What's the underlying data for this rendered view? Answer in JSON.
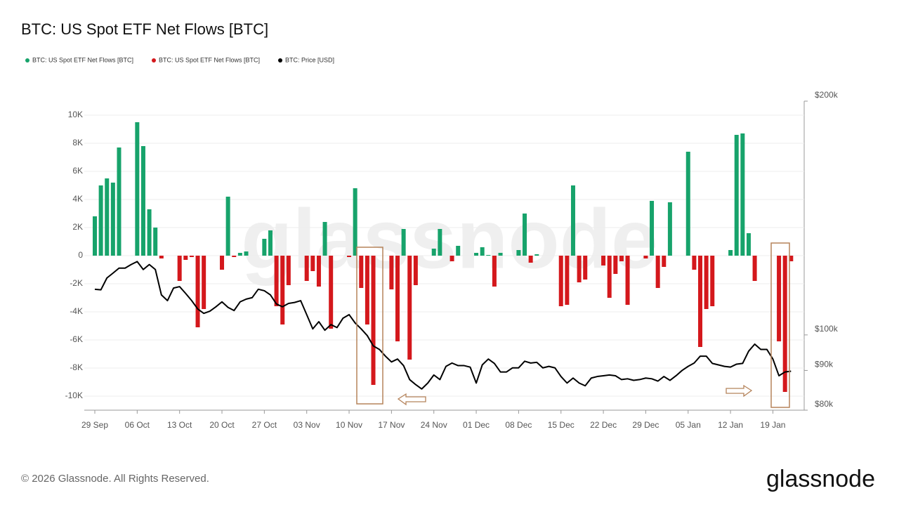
{
  "chart_data": {
    "type": "bar",
    "title": "BTC: US Spot ETF Net Flows [BTC]",
    "legend": "top-left",
    "grid": true,
    "categories": [
      "29 Sep",
      null,
      null,
      null,
      null,
      null,
      null,
      "06 Oct",
      null,
      null,
      null,
      null,
      null,
      null,
      "13 Oct",
      null,
      null,
      null,
      null,
      null,
      null,
      "20 Oct",
      null,
      null,
      null,
      null,
      null,
      null,
      "27 Oct",
      null,
      null,
      null,
      null,
      null,
      null,
      "03 Nov",
      null,
      null,
      null,
      null,
      null,
      null,
      "10 Nov",
      null,
      null,
      null,
      null,
      null,
      null,
      "17 Nov",
      null,
      null,
      null,
      null,
      null,
      null,
      "24 Nov",
      null,
      null,
      null,
      null,
      null,
      null,
      "01 Dec",
      null,
      null,
      null,
      null,
      null,
      null,
      "08 Dec",
      null,
      null,
      null,
      null,
      null,
      null,
      "15 Dec",
      null,
      null,
      null,
      null,
      null,
      null,
      "22 Dec",
      null,
      null,
      null,
      null,
      null,
      null,
      "29 Dec",
      null,
      null,
      null,
      null,
      null,
      null,
      "05 Jan",
      null,
      null,
      null,
      null,
      null,
      null,
      "12 Jan",
      null,
      null,
      null,
      null,
      null,
      null,
      "19 Jan",
      null,
      null,
      null
    ],
    "ylim": [
      -11000,
      11000
    ],
    "yticks": [
      {
        "value": -10000,
        "label": "-10K"
      },
      {
        "value": -8000,
        "label": "-8K"
      },
      {
        "value": -6000,
        "label": "-6K"
      },
      {
        "value": -4000,
        "label": "-4K"
      },
      {
        "value": -2000,
        "label": "-2K"
      },
      0,
      {
        "value": 2000,
        "label": "2K"
      },
      {
        "value": 4000,
        "label": "4K"
      },
      {
        "value": 6000,
        "label": "6K"
      },
      {
        "value": 8000,
        "label": "8K"
      },
      {
        "value": 10000,
        "label": "10K"
      }
    ],
    "y2lim": [
      80000,
      200000
    ],
    "y2log": true,
    "y2ticks": [
      {
        "value": 80000,
        "label": "$80k"
      },
      {
        "value": 90000,
        "label": "$90k"
      },
      {
        "value": 100000,
        "label": "$100k"
      },
      {
        "value": 200000,
        "label": "$200k"
      }
    ],
    "series": [
      {
        "name": "BTC: US Spot ETF Net Flows [BTC]",
        "type": "bar",
        "color": "#17a36b",
        "values": [
          2800,
          5000,
          5500,
          5200,
          7700,
          null,
          null,
          9500,
          7800,
          3300,
          2000,
          null,
          null,
          null,
          null,
          null,
          null,
          null,
          null,
          null,
          null,
          null,
          4200,
          null,
          200,
          300,
          null,
          null,
          1200,
          1800,
          null,
          null,
          null,
          null,
          null,
          null,
          null,
          null,
          2400,
          null,
          null,
          null,
          null,
          4800,
          null,
          null,
          null,
          null,
          null,
          null,
          null,
          1900,
          null,
          null,
          null,
          null,
          500,
          1900,
          null,
          null,
          700,
          null,
          null,
          200,
          600,
          50,
          null,
          200,
          null,
          null,
          400,
          3000,
          null,
          100,
          null,
          null,
          null,
          null,
          null,
          5000,
          null,
          null,
          null,
          null,
          null,
          null,
          null,
          null,
          null,
          null,
          null,
          null,
          3900,
          null,
          null,
          3800,
          null,
          null,
          7400,
          null,
          null,
          null,
          null,
          null,
          null,
          400,
          8600,
          8700,
          1600,
          null,
          null,
          null,
          null,
          null,
          null,
          null
        ]
      },
      {
        "name": "BTC: US Spot ETF Net Flows [BTC]",
        "type": "bar",
        "color": "#d4181c",
        "values": [
          null,
          null,
          null,
          null,
          null,
          null,
          null,
          null,
          null,
          null,
          null,
          -200,
          null,
          null,
          -1800,
          -300,
          -100,
          -5100,
          -3800,
          null,
          null,
          -1000,
          null,
          -100,
          null,
          null,
          null,
          null,
          null,
          null,
          -3600,
          -4900,
          -2100,
          null,
          null,
          -1800,
          -1100,
          -2200,
          null,
          -5200,
          null,
          null,
          -100,
          null,
          -2300,
          -4900,
          -9200,
          null,
          null,
          -2400,
          -6100,
          null,
          -7400,
          -2100,
          null,
          null,
          null,
          null,
          null,
          -400,
          null,
          null,
          null,
          null,
          null,
          null,
          -2200,
          null,
          null,
          null,
          null,
          null,
          -500,
          null,
          null,
          null,
          null,
          -3600,
          -3500,
          null,
          -1900,
          -1700,
          null,
          null,
          -700,
          -3000,
          -1300,
          -400,
          -3500,
          null,
          null,
          -200,
          null,
          -2300,
          -800,
          null,
          null,
          null,
          null,
          -1000,
          -6500,
          -3800,
          -3600,
          null,
          null,
          null,
          null,
          null,
          null,
          -1800,
          null,
          null,
          null,
          -6100,
          -9700,
          -400
        ]
      },
      {
        "name": "BTC: Price [USD]",
        "type": "line",
        "axis": "y2",
        "color": "#000000",
        "values": [
          114500,
          114300,
          118400,
          120100,
          121900,
          121900,
          123200,
          124300,
          121400,
          123200,
          121400,
          112600,
          110700,
          114900,
          115400,
          113100,
          110700,
          108000,
          106600,
          107300,
          108700,
          110300,
          108500,
          107500,
          110300,
          111200,
          111700,
          114500,
          114000,
          112600,
          109600,
          108700,
          109800,
          110100,
          110700,
          106200,
          101800,
          104000,
          101400,
          103100,
          102200,
          105100,
          106200,
          103600,
          101800,
          99800,
          96800,
          95800,
          93900,
          92300,
          93100,
          91300,
          87600,
          86300,
          85200,
          86700,
          88800,
          87600,
          91100,
          92000,
          91300,
          91300,
          90900,
          86700,
          91500,
          93100,
          91900,
          89600,
          89600,
          90700,
          90700,
          92500,
          92000,
          92200,
          90700,
          91100,
          90700,
          88400,
          86700,
          88000,
          86700,
          86000,
          88000,
          88400,
          88600,
          88800,
          88600,
          87600,
          87800,
          87400,
          87600,
          88000,
          87800,
          87200,
          88400,
          87400,
          88600,
          90000,
          91100,
          92000,
          93900,
          93900,
          91900,
          91500,
          91100,
          90900,
          91700,
          91900,
          95300,
          97300,
          95800,
          95800,
          93100,
          88600,
          89600,
          89800
        ]
      }
    ]
  },
  "copyright": "© 2026 Glassnode. All Rights Reserved.",
  "brand": "glassnode"
}
